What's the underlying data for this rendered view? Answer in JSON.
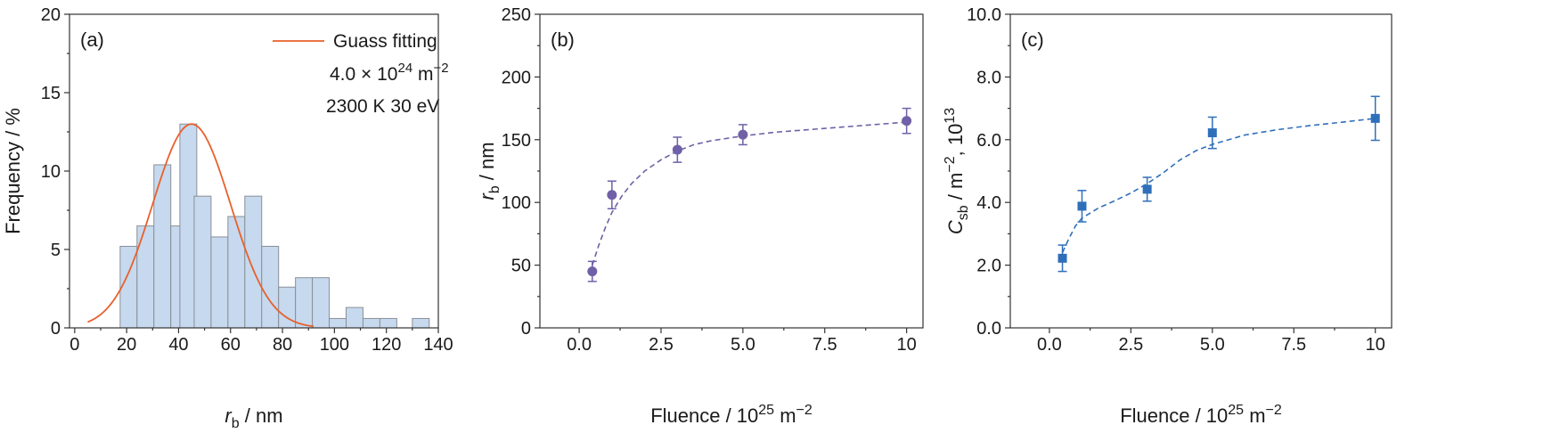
{
  "chart_data": [
    {
      "type": "bar",
      "panel_label": "(a)",
      "xlabel": {
        "main": "r",
        "sub": "b",
        "rest": " / nm"
      },
      "ylabel": "Frequency / %",
      "xlim": [
        -2,
        140
      ],
      "ylim": [
        0,
        20
      ],
      "xticks": [
        "0",
        "20",
        "40",
        "60",
        "80",
        "100",
        "120",
        "140"
      ],
      "yticks": [
        "0",
        "5",
        "10",
        "15",
        "20"
      ],
      "bin_width": 6.5,
      "bins": [
        {
          "x0": 17.5,
          "value": 5.2
        },
        {
          "x0": 24.0,
          "value": 6.5
        },
        {
          "x0": 30.5,
          "value": 10.4
        },
        {
          "x0": 37.0,
          "value": 6.5
        },
        {
          "x0": 40.5,
          "value": 13.0
        },
        {
          "x0": 46.0,
          "value": 8.4
        },
        {
          "x0": 52.5,
          "value": 5.8
        },
        {
          "x0": 59.0,
          "value": 7.1
        },
        {
          "x0": 65.5,
          "value": 8.4
        },
        {
          "x0": 72.0,
          "value": 5.2
        },
        {
          "x0": 78.5,
          "value": 2.6
        },
        {
          "x0": 85.0,
          "value": 3.2
        },
        {
          "x0": 91.5,
          "value": 3.2
        },
        {
          "x0": 98.0,
          "value": 0.6
        },
        {
          "x0": 104.5,
          "value": 1.3
        },
        {
          "x0": 111.0,
          "value": 0.6
        },
        {
          "x0": 117.5,
          "value": 0.6
        },
        {
          "x0": 130.0,
          "value": 0.6
        }
      ],
      "fit": {
        "name": "Guass fitting",
        "mean": 45,
        "sigma": 15,
        "peak": 13.0,
        "x_range": [
          5,
          92
        ],
        "color": "#e8602c"
      },
      "bar_fill": "#c6d9ee",
      "bar_stroke": "#8a8f96",
      "annotations": [
        {
          "parts": [
            "4.0 × 10",
            "24",
            " m",
            "−2"
          ]
        },
        {
          "parts": [
            "2300 K   30 eV"
          ]
        }
      ]
    },
    {
      "type": "scatter",
      "panel_label": "(b)",
      "xlabel": {
        "main": "Fluence / 10",
        "sup": "25",
        "rest": " m",
        "sup2": "−2"
      },
      "ylabel": {
        "main": "r",
        "sub": "b",
        "rest": " / nm"
      },
      "xlim": [
        -1.2,
        10.5
      ],
      "ylim": [
        0,
        250
      ],
      "xticks": [
        "0.0",
        "2.5",
        "5.0",
        "7.5",
        "10"
      ],
      "xtick_values": [
        0,
        2.5,
        5,
        7.5,
        10
      ],
      "yticks": [
        "0",
        "50",
        "100",
        "150",
        "200",
        "250"
      ],
      "color": "#7060a8",
      "marker": "circle",
      "points": [
        {
          "x": 0.4,
          "y": 45,
          "err": 8
        },
        {
          "x": 1.0,
          "y": 106,
          "err": 11
        },
        {
          "x": 3.0,
          "y": 142,
          "err": 10
        },
        {
          "x": 5.0,
          "y": 154,
          "err": 8
        },
        {
          "x": 10.0,
          "y": 165,
          "err": 10
        }
      ],
      "fit_curve": {
        "style": "dashed",
        "points": [
          [
            0.4,
            50
          ],
          [
            0.6,
            66
          ],
          [
            0.8,
            80
          ],
          [
            1.0,
            92
          ],
          [
            1.3,
            105
          ],
          [
            1.6,
            115
          ],
          [
            2.0,
            125
          ],
          [
            2.5,
            134
          ],
          [
            3.0,
            141
          ],
          [
            3.5,
            146
          ],
          [
            4.0,
            149
          ],
          [
            5.0,
            153
          ],
          [
            6.0,
            156
          ],
          [
            7.0,
            158
          ],
          [
            8.0,
            160
          ],
          [
            9.0,
            162
          ],
          [
            10.0,
            164
          ]
        ]
      }
    },
    {
      "type": "scatter",
      "panel_label": "(c)",
      "xlabel": {
        "main": "Fluence / 10",
        "sup": "25",
        "rest": " m",
        "sup2": "−2"
      },
      "ylabel": {
        "main": "C",
        "sub": "sb",
        "rest": " / m",
        "sup": "−2",
        "rest2": ", 10",
        "sup2": "13"
      },
      "xlim": [
        -1.2,
        10.5
      ],
      "ylim": [
        0,
        10
      ],
      "xticks": [
        "0.0",
        "2.5",
        "5.0",
        "7.5",
        "10"
      ],
      "xtick_values": [
        0,
        2.5,
        5,
        7.5,
        10
      ],
      "yticks": [
        "0.0",
        "2.0",
        "4.0",
        "6.0",
        "8.0",
        "10.0"
      ],
      "color": "#2f6fba",
      "marker": "square",
      "points": [
        {
          "x": 0.4,
          "y": 2.22,
          "err": 0.42
        },
        {
          "x": 1.0,
          "y": 3.88,
          "err": 0.5
        },
        {
          "x": 3.0,
          "y": 4.42,
          "err": 0.38
        },
        {
          "x": 5.0,
          "y": 6.22,
          "err": 0.5
        },
        {
          "x": 10.0,
          "y": 6.68,
          "err": 0.7
        }
      ],
      "fit_curve": {
        "style": "dashed",
        "points": [
          [
            0.4,
            2.4
          ],
          [
            0.6,
            2.85
          ],
          [
            0.8,
            3.25
          ],
          [
            1.0,
            3.5
          ],
          [
            1.5,
            3.82
          ],
          [
            2.0,
            4.05
          ],
          [
            2.5,
            4.3
          ],
          [
            3.0,
            4.6
          ],
          [
            3.5,
            4.95
          ],
          [
            4.0,
            5.35
          ],
          [
            4.5,
            5.65
          ],
          [
            5.0,
            5.85
          ],
          [
            6.0,
            6.15
          ],
          [
            7.0,
            6.32
          ],
          [
            8.0,
            6.45
          ],
          [
            9.0,
            6.56
          ],
          [
            10.0,
            6.68
          ]
        ]
      }
    }
  ]
}
